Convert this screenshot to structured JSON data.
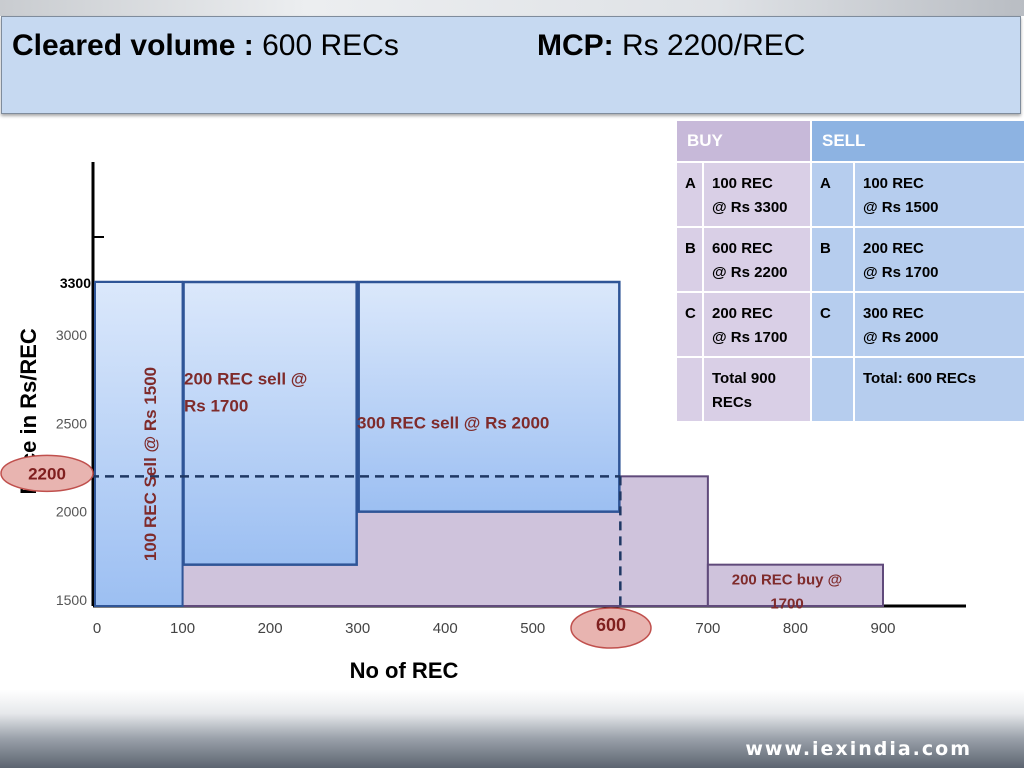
{
  "header": {
    "cleared_label": "Cleared volume :",
    "cleared_value": "600 RECs",
    "mcp_label": "MCP:",
    "mcp_value": "Rs 2200/REC"
  },
  "order_table": {
    "buy_header": "BUY",
    "sell_header": "SELL",
    "rows": [
      {
        "buy_id": "A",
        "buy_line1": "100 REC",
        "buy_line2": "@ Rs 3300",
        "sell_id": "A",
        "sell_line1": "100 REC",
        "sell_line2": "@ Rs 1500"
      },
      {
        "buy_id": "B",
        "buy_line1": "600 REC",
        "buy_line2": "@ Rs 2200",
        "sell_id": "B",
        "sell_line1": "200 REC",
        "sell_line2": "@ Rs 1700"
      },
      {
        "buy_id": "C",
        "buy_line1": "200 REC",
        "buy_line2": "@ Rs 1700",
        "sell_id": "C",
        "sell_line1": "300 REC",
        "sell_line2": "@ Rs 2000"
      }
    ],
    "totals": {
      "buy_line1": "Total 900",
      "buy_line2": "RECs",
      "sell": "Total: 600 RECs"
    }
  },
  "chart_data": {
    "type": "area",
    "xlabel": "No of REC",
    "ylabel": "Price in Rs/REC",
    "xlim": [
      0,
      900
    ],
    "ylim": [
      1500,
      3300
    ],
    "x_ticks": [
      0,
      100,
      200,
      300,
      400,
      500,
      600,
      700,
      800,
      900
    ],
    "y_ticks": [
      1500,
      2000,
      2500,
      3000
    ],
    "y_extra_label": "3300",
    "series": [
      {
        "role": "buy",
        "steps": [
          {
            "from": 0,
            "to": 100,
            "price": 3300
          },
          {
            "from": 100,
            "to": 700,
            "price": 2200
          },
          {
            "from": 700,
            "to": 900,
            "price": 1700
          }
        ]
      },
      {
        "role": "sell",
        "steps": [
          {
            "from": 0,
            "to": 100,
            "price": 1500
          },
          {
            "from": 100,
            "to": 300,
            "price": 1700
          },
          {
            "from": 300,
            "to": 600,
            "price": 2000
          }
        ]
      }
    ],
    "annotations": {
      "sell_a": "100 REC Sell @ Rs 1500",
      "sell_b": "200 REC sell @ Rs 1700",
      "sell_c": "300 REC sell @ Rs 2000",
      "buy_c": "200 REC buy @ 1700",
      "mcp_price_marker": "2200",
      "cleared_volume_marker": "600"
    },
    "mcp_price": 2200,
    "cleared_volume": 600,
    "colors": {
      "buy_fill": "#cfc3dc",
      "buy_stroke": "#604a7b",
      "sell_fill_top": "#dbe8fb",
      "sell_fill_bottom": "#9cbff2",
      "sell_stroke": "#2f5597",
      "annotation_text": "#7f2b2b",
      "marker_fill": "#e8b4b0",
      "marker_stroke": "#c0504d"
    }
  },
  "footer": {
    "url": "www.iexindia.com"
  }
}
